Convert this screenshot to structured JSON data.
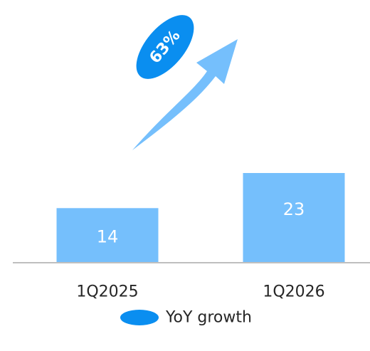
{
  "chart_data": {
    "type": "bar",
    "categories": [
      "1Q2025",
      "1Q2026"
    ],
    "values": [
      14,
      23
    ],
    "growth": {
      "label": "63%",
      "legend": "YoY growth"
    },
    "ylim": [
      0,
      30
    ],
    "grid": false,
    "legend_position": "bottom"
  },
  "colors": {
    "bar": "#75bffc",
    "arrow": "#75bffc",
    "badge": "#0a8ef0",
    "axis": "#bfbfbf",
    "text": "#262626",
    "bar_text": "#ffffff"
  }
}
